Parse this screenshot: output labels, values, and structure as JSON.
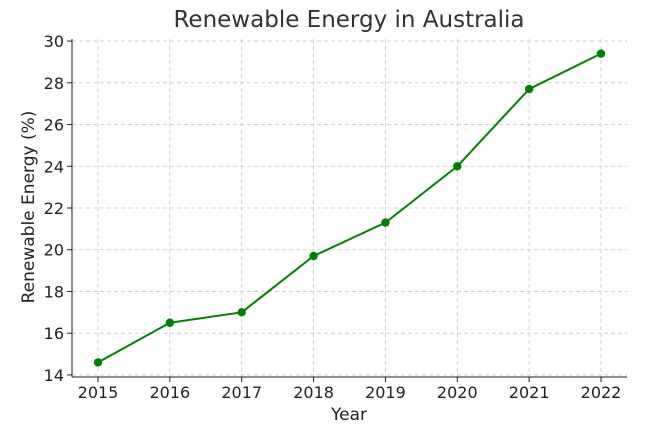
{
  "chart_data": {
    "type": "line",
    "title": "Renewable Energy in Australia",
    "xlabel": "Year",
    "ylabel": "Renewable Energy (%)",
    "x": [
      2015,
      2016,
      2017,
      2018,
      2019,
      2020,
      2021,
      2022
    ],
    "series": [
      {
        "values": [
          14.6,
          16.5,
          17.0,
          19.7,
          21.3,
          24.0,
          27.7,
          29.4
        ],
        "color": "#008000",
        "marker": "circle"
      }
    ],
    "ylim": [
      13.9,
      30.1
    ],
    "yticks": [
      14,
      16,
      18,
      20,
      22,
      24,
      26,
      28,
      30
    ],
    "grid": true
  }
}
